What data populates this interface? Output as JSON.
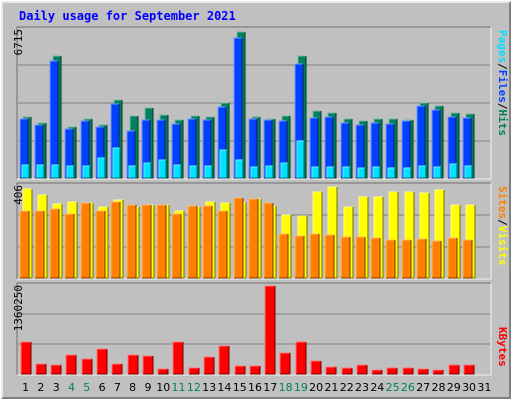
{
  "title": "Daily usage for September 2021",
  "colors": {
    "hits": "#00805c",
    "files": "#0040ff",
    "pages": "#00e0ff",
    "visits": "#ffff00",
    "sites": "#ff8000",
    "kbytes": "#ff0000",
    "title": "#0000ff",
    "weekend": "#00805c",
    "weekday": "#000000"
  },
  "chart_data": [
    {
      "type": "bar",
      "categories": [
        "1",
        "2",
        "3",
        "4",
        "5",
        "6",
        "7",
        "8",
        "9",
        "10",
        "11",
        "12",
        "13",
        "14",
        "15",
        "16",
        "17",
        "18",
        "19",
        "20",
        "21",
        "22",
        "23",
        "24",
        "25",
        "26",
        "27",
        "28",
        "29",
        "30",
        "31"
      ],
      "weekend_days": [
        "4",
        "5",
        "11",
        "12",
        "18",
        "19",
        "25",
        "26"
      ],
      "ymax_label": "6715",
      "ylim": [
        0,
        6715
      ],
      "legend": [
        "Hits",
        "Files",
        "Pages"
      ],
      "series": [
        {
          "name": "Hits",
          "values": [
            2800,
            2550,
            5600,
            2350,
            2700,
            2450,
            3600,
            2850,
            3200,
            2900,
            2650,
            2850,
            2800,
            3450,
            6715,
            2800,
            2700,
            2850,
            5600,
            3100,
            3000,
            2700,
            2600,
            2700,
            2700,
            2650,
            3450,
            3300,
            3000,
            2950,
            0
          ]
        },
        {
          "name": "Files",
          "values": [
            2700,
            2450,
            5400,
            2250,
            2600,
            2350,
            3400,
            2150,
            2650,
            2650,
            2500,
            2700,
            2650,
            3250,
            6450,
            2700,
            2650,
            2600,
            5250,
            2750,
            2800,
            2550,
            2450,
            2550,
            2500,
            2600,
            3300,
            3150,
            2800,
            2750,
            0
          ]
        },
        {
          "name": "Pages",
          "values": [
            600,
            600,
            600,
            550,
            550,
            900,
            1400,
            550,
            700,
            850,
            600,
            550,
            550,
            1300,
            850,
            500,
            550,
            700,
            1700,
            500,
            500,
            500,
            450,
            500,
            450,
            450,
            550,
            500,
            650,
            550,
            0
          ]
        }
      ],
      "grid": true
    },
    {
      "type": "bar",
      "categories": [
        "1",
        "2",
        "3",
        "4",
        "5",
        "6",
        "7",
        "8",
        "9",
        "10",
        "11",
        "12",
        "13",
        "14",
        "15",
        "16",
        "17",
        "18",
        "19",
        "20",
        "21",
        "22",
        "23",
        "24",
        "25",
        "26",
        "27",
        "28",
        "29",
        "30",
        "31"
      ],
      "ymax_label": "406",
      "ylim": [
        0,
        406
      ],
      "legend": [
        "Sites",
        "Visits"
      ],
      "series": [
        {
          "name": "Visits",
          "values": [
            400,
            375,
            335,
            345,
            340,
            320,
            350,
            320,
            330,
            330,
            300,
            320,
            345,
            340,
            345,
            355,
            325,
            285,
            280,
            390,
            410,
            320,
            365,
            365,
            390,
            390,
            385,
            395,
            330,
            330,
            0
          ]
        },
        {
          "name": "Sites",
          "values": [
            300,
            300,
            310,
            290,
            340,
            300,
            345,
            330,
            330,
            330,
            290,
            325,
            325,
            300,
            360,
            355,
            340,
            200,
            190,
            200,
            195,
            185,
            185,
            180,
            170,
            170,
            175,
            165,
            180,
            170,
            0
          ]
        }
      ],
      "grid": true
    },
    {
      "type": "bar",
      "categories": [
        "1",
        "2",
        "3",
        "4",
        "5",
        "6",
        "7",
        "8",
        "9",
        "10",
        "11",
        "12",
        "13",
        "14",
        "15",
        "16",
        "17",
        "18",
        "19",
        "20",
        "21",
        "22",
        "23",
        "24",
        "25",
        "26",
        "27",
        "28",
        "29",
        "30",
        "31"
      ],
      "ymax_label": "1360250",
      "ylim": [
        0,
        1360250
      ],
      "legend": [
        "KBytes"
      ],
      "series": [
        {
          "name": "KBytes",
          "values": [
            490000,
            160000,
            145000,
            300000,
            230000,
            380000,
            160000,
            290000,
            280000,
            85000,
            500000,
            100000,
            260000,
            440000,
            120000,
            130000,
            1360250,
            330000,
            500000,
            195000,
            115000,
            100000,
            145000,
            55000,
            100000,
            95000,
            80000,
            60000,
            145000,
            135000,
            0
          ]
        }
      ],
      "grid": true
    }
  ]
}
